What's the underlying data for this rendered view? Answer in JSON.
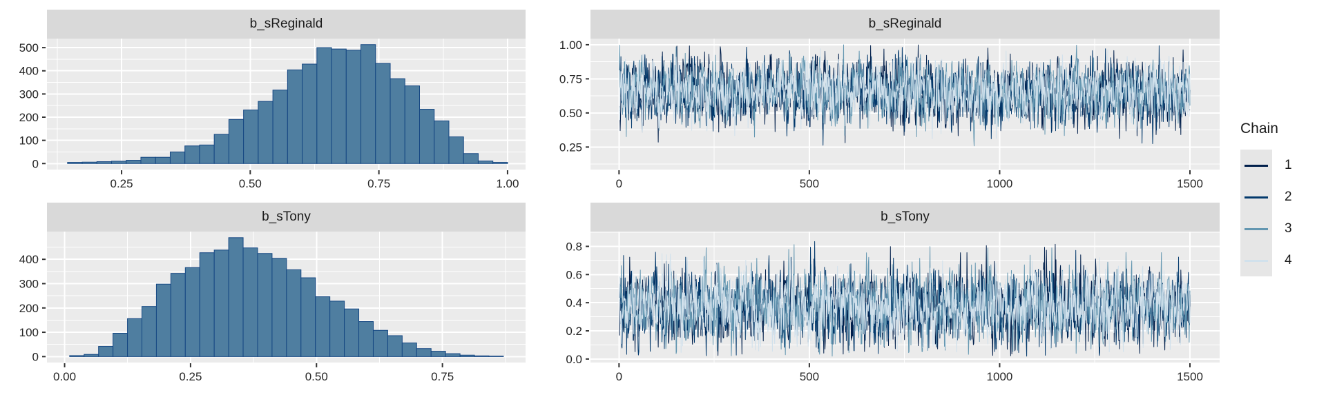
{
  "page": {
    "background": "#ffffff"
  },
  "theme": {
    "panel_bg": "#EBEBEB",
    "grid_major": "#FFFFFF",
    "grid_minor": "#FFFFFF",
    "strip_bg": "#D9D9D9",
    "strip_text": "#1A1A1A",
    "axis_text": "#262626",
    "tick_mark": "#333333",
    "hist_fill": "#4F7EA0",
    "hist_stroke": "#144682"
  },
  "legend": {
    "title": "Chain",
    "entries": [
      {
        "label": "1",
        "color": "#011f4b"
      },
      {
        "label": "2",
        "color": "#03396c"
      },
      {
        "label": "3",
        "color": "#6497b1"
      },
      {
        "label": "4",
        "color": "#d1e1ec"
      }
    ]
  },
  "chart_data": [
    {
      "id": "hist_b_sReginald",
      "type": "bar",
      "subtype": "histogram",
      "title": "b_sReginald",
      "bin_start": 0.145,
      "bin_width": 0.0285,
      "counts": [
        5,
        6,
        8,
        10,
        14,
        27,
        27,
        50,
        76,
        80,
        126,
        190,
        231,
        268,
        317,
        404,
        429,
        500,
        494,
        489,
        513,
        432,
        366,
        335,
        234,
        184,
        115,
        43,
        11,
        5
      ],
      "x_domain": [
        0.105,
        1.035
      ],
      "y_domain": [
        -26,
        539
      ],
      "x_ticks": {
        "major": [
          0.25,
          0.5,
          0.75,
          1.0
        ],
        "minor": [
          0.125,
          0.375,
          0.625,
          0.875
        ],
        "labels": [
          "0.25",
          "0.50",
          "0.75",
          "1.00"
        ]
      },
      "y_ticks": {
        "major": [
          0,
          100,
          200,
          300,
          400,
          500
        ],
        "minor": [
          50,
          150,
          250,
          350,
          450
        ],
        "labels": [
          "0",
          "100",
          "200",
          "300",
          "400",
          "500"
        ]
      }
    },
    {
      "id": "hist_b_sTony",
      "type": "bar",
      "subtype": "histogram",
      "title": "b_sTony",
      "bin_start": 0.01,
      "bin_width": 0.0287,
      "counts": [
        4,
        9,
        42,
        96,
        156,
        206,
        298,
        342,
        366,
        427,
        438,
        489,
        447,
        424,
        404,
        357,
        324,
        246,
        228,
        196,
        144,
        108,
        86,
        56,
        33,
        22,
        12,
        6,
        3,
        2
      ],
      "x_domain": [
        -0.035,
        0.915
      ],
      "y_domain": [
        -24.5,
        514
      ],
      "x_ticks": {
        "major": [
          0.0,
          0.25,
          0.5,
          0.75
        ],
        "minor": [
          0.125,
          0.375,
          0.625,
          0.875
        ],
        "labels": [
          "0.00",
          "0.25",
          "0.50",
          "0.75"
        ]
      },
      "y_ticks": {
        "major": [
          0,
          100,
          200,
          300,
          400
        ],
        "minor": [
          50,
          150,
          250,
          350,
          450
        ],
        "labels": [
          "0",
          "100",
          "200",
          "300",
          "400"
        ]
      }
    },
    {
      "id": "trace_b_sReginald",
      "type": "line",
      "subtype": "mcmc_trace",
      "title": "b_sReginald",
      "n_iterations": 1500,
      "x_domain": [
        -75,
        1578
      ],
      "y_domain": [
        0.085,
        1.045
      ],
      "x_ticks": {
        "major": [
          0,
          500,
          1000,
          1500
        ],
        "minor": [
          250,
          750,
          1250
        ],
        "labels": [
          "0",
          "500",
          "1000",
          "1500"
        ]
      },
      "y_ticks": {
        "major": [
          0.25,
          0.5,
          0.75,
          1.0
        ],
        "minor": [
          0.125,
          0.375,
          0.625,
          0.875
        ],
        "labels": [
          "0.25",
          "0.50",
          "0.75",
          "1.00"
        ]
      },
      "series": [
        {
          "name": "1",
          "color": "#011f4b",
          "mean": 0.655,
          "sd": 0.12,
          "ar1": 0.32,
          "min": 0.13,
          "max": 1.0,
          "seed": 11
        },
        {
          "name": "2",
          "color": "#03396c",
          "mean": 0.655,
          "sd": 0.115,
          "ar1": 0.32,
          "min": 0.13,
          "max": 1.0,
          "seed": 12
        },
        {
          "name": "3",
          "color": "#6497b1",
          "mean": 0.655,
          "sd": 0.115,
          "ar1": 0.32,
          "min": 0.13,
          "max": 1.0,
          "seed": 13
        },
        {
          "name": "4",
          "color": "#d1e1ec",
          "mean": 0.655,
          "sd": 0.11,
          "ar1": 0.32,
          "min": 0.15,
          "max": 0.98,
          "seed": 14
        }
      ]
    },
    {
      "id": "trace_b_sTony",
      "type": "line",
      "subtype": "mcmc_trace",
      "title": "b_sTony",
      "n_iterations": 1500,
      "x_domain": [
        -75,
        1578
      ],
      "y_domain": [
        -0.025,
        0.905
      ],
      "x_ticks": {
        "major": [
          0,
          500,
          1000,
          1500
        ],
        "minor": [
          250,
          750,
          1250
        ],
        "labels": [
          "0",
          "500",
          "1000",
          "1500"
        ]
      },
      "y_ticks": {
        "major": [
          0.0,
          0.2,
          0.4,
          0.6,
          0.8
        ],
        "minor": [
          0.1,
          0.3,
          0.5,
          0.7,
          0.9
        ],
        "labels": [
          "0.0",
          "0.2",
          "0.4",
          "0.6",
          "0.8"
        ]
      },
      "series": [
        {
          "name": "1",
          "color": "#011f4b",
          "mean": 0.37,
          "sd": 0.135,
          "ar1": 0.32,
          "min": 0.02,
          "max": 0.85,
          "seed": 21
        },
        {
          "name": "2",
          "color": "#03396c",
          "mean": 0.37,
          "sd": 0.133,
          "ar1": 0.32,
          "min": 0.02,
          "max": 0.85,
          "seed": 22
        },
        {
          "name": "3",
          "color": "#6497b1",
          "mean": 0.37,
          "sd": 0.13,
          "ar1": 0.32,
          "min": 0.02,
          "max": 0.82,
          "seed": 23
        },
        {
          "name": "4",
          "color": "#d1e1ec",
          "mean": 0.37,
          "sd": 0.125,
          "ar1": 0.32,
          "min": 0.04,
          "max": 0.8,
          "seed": 24
        }
      ]
    }
  ]
}
